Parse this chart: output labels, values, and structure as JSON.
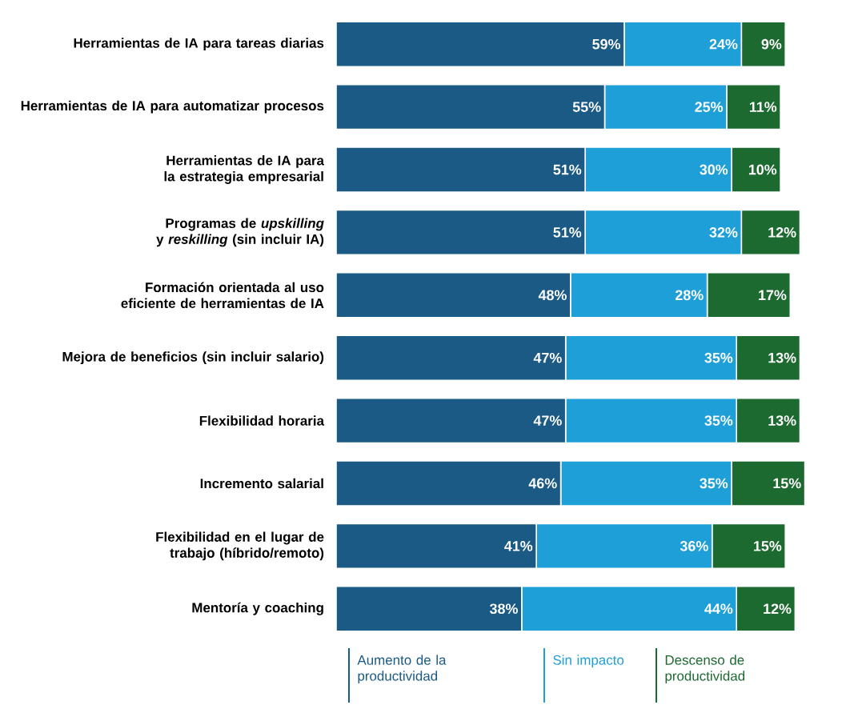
{
  "chart_data": {
    "type": "bar",
    "orientation": "horizontal",
    "stacked": true,
    "legend": "bottom",
    "categories": [
      "Herramientas de IA para tareas diarias",
      "Herramientas de IA para automatizar procesos",
      "Herramientas de IA para la estrategia empresarial",
      "Programas de *upskilling* y *reskilling* (sin incluir IA)",
      "Formación orientada al uso eficiente de herramientas de IA",
      "Mejora de beneficios (sin incluir salario)",
      "Flexibilidad horaria",
      "Incremento salarial",
      "Flexibilidad en el lugar de trabajo (híbrido/remoto)",
      "Mentoría y coaching"
    ],
    "series": [
      {
        "name": "Aumento de la productividad",
        "color": "#1b5a85",
        "values": [
          59,
          55,
          51,
          51,
          48,
          47,
          47,
          46,
          41,
          38
        ],
        "value_labels": [
          "59%",
          "55%",
          "51%",
          "51%",
          "48%",
          "47%",
          "47%",
          "46%",
          "41%",
          "38%"
        ]
      },
      {
        "name": "Sin impacto",
        "color": "#1e9fd8",
        "values": [
          24,
          25,
          30,
          32,
          28,
          35,
          35,
          35,
          36,
          44
        ],
        "value_labels": [
          "24%",
          "25%",
          "30%",
          "32%",
          "28%",
          "35%",
          "35%",
          "35%",
          "36%",
          "44%"
        ]
      },
      {
        "name": "Descenso de productividad",
        "color": "#1d6a30",
        "values": [
          9,
          11,
          10,
          12,
          17,
          13,
          13,
          15,
          15,
          12
        ],
        "value_labels": [
          "9%",
          "11%",
          "10%",
          "12%",
          "17%",
          "13%",
          "13%",
          "15%",
          "15%",
          "12%"
        ]
      }
    ]
  }
}
